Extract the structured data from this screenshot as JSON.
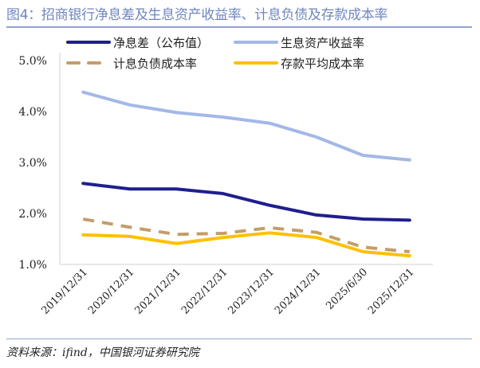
{
  "title": "图4：招商银行净息差及生息资产收益率、计息负债及存款成本率",
  "source": "资料来源：ifind，中国银河证券研究院",
  "chart_data": {
    "type": "line",
    "categories": [
      "2019/12/31",
      "2020/12/31",
      "2021/12/31",
      "2022/12/31",
      "2023/12/31",
      "2024/12/31",
      "2025/6/30",
      "2025/12/31"
    ],
    "ylim": [
      1.0,
      5.0
    ],
    "yticks": [
      "1.0%",
      "2.0%",
      "3.0%",
      "4.0%",
      "5.0%"
    ],
    "grid": false,
    "legend": "top",
    "series": [
      {
        "name": "净息差（公布值）",
        "color": "#1f1f8f",
        "dash": false,
        "values": [
          2.59,
          2.48,
          2.48,
          2.39,
          2.16,
          1.97,
          1.89,
          1.87
        ]
      },
      {
        "name": "生息资产收益率",
        "color": "#a3b8e6",
        "dash": false,
        "values": [
          4.38,
          4.13,
          3.98,
          3.89,
          3.77,
          3.5,
          3.14,
          3.05
        ]
      },
      {
        "name": "计息负债成本率",
        "color": "#c49d6a",
        "dash": true,
        "values": [
          1.89,
          1.73,
          1.59,
          1.61,
          1.72,
          1.63,
          1.34,
          1.25
        ]
      },
      {
        "name": "存款平均成本率",
        "color": "#ffc000",
        "dash": false,
        "values": [
          1.58,
          1.55,
          1.41,
          1.53,
          1.62,
          1.53,
          1.25,
          1.17
        ]
      }
    ]
  }
}
